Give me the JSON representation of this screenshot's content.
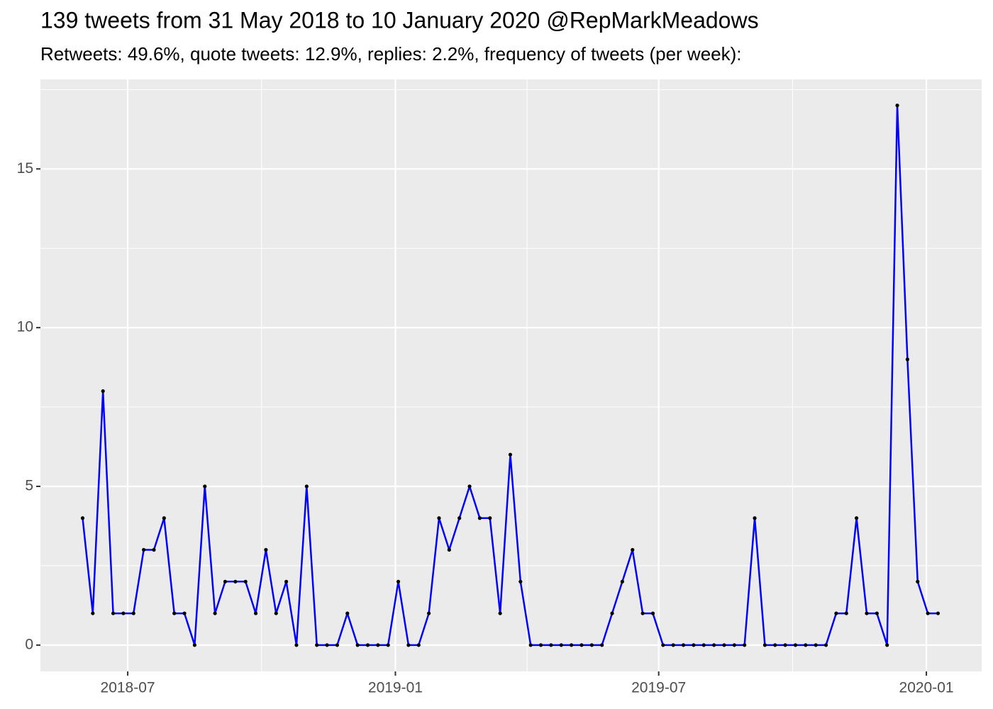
{
  "chart_data": {
    "type": "line",
    "title": "139 tweets from 31 May 2018 to 10 January 2020 @RepMarkMeadows",
    "subtitle": "Retweets: 49.6%, quote tweets: 12.9%, replies: 2.2%, frequency of tweets (per week):",
    "x": [
      "2018-05-31",
      "2018-06-07",
      "2018-06-14",
      "2018-06-21",
      "2018-06-28",
      "2018-07-05",
      "2018-07-12",
      "2018-07-19",
      "2018-07-26",
      "2018-08-02",
      "2018-08-09",
      "2018-08-16",
      "2018-08-23",
      "2018-08-30",
      "2018-09-06",
      "2018-09-13",
      "2018-09-20",
      "2018-09-27",
      "2018-10-04",
      "2018-10-11",
      "2018-10-18",
      "2018-10-25",
      "2018-11-01",
      "2018-11-08",
      "2018-11-15",
      "2018-11-22",
      "2018-11-29",
      "2018-12-06",
      "2018-12-13",
      "2018-12-20",
      "2018-12-27",
      "2019-01-03",
      "2019-01-10",
      "2019-01-17",
      "2019-01-24",
      "2019-01-31",
      "2019-02-07",
      "2019-02-14",
      "2019-02-21",
      "2019-02-28",
      "2019-03-07",
      "2019-03-14",
      "2019-03-21",
      "2019-03-28",
      "2019-04-04",
      "2019-04-11",
      "2019-04-18",
      "2019-04-25",
      "2019-05-02",
      "2019-05-09",
      "2019-05-16",
      "2019-05-23",
      "2019-05-30",
      "2019-06-06",
      "2019-06-13",
      "2019-06-20",
      "2019-06-27",
      "2019-07-04",
      "2019-07-11",
      "2019-07-18",
      "2019-07-25",
      "2019-08-01",
      "2019-08-08",
      "2019-08-15",
      "2019-08-22",
      "2019-08-29",
      "2019-09-05",
      "2019-09-12",
      "2019-09-19",
      "2019-09-26",
      "2019-10-03",
      "2019-10-10",
      "2019-10-17",
      "2019-10-24",
      "2019-10-31",
      "2019-11-07",
      "2019-11-14",
      "2019-11-21",
      "2019-11-28",
      "2019-12-05",
      "2019-12-12",
      "2019-12-19",
      "2019-12-26",
      "2020-01-02",
      "2020-01-09"
    ],
    "series": [
      {
        "color": "#0000ff",
        "point_color": "#000000",
        "values": [
          4,
          1,
          8,
          1,
          1,
          1,
          3,
          3,
          4,
          1,
          1,
          0,
          5,
          1,
          2,
          2,
          2,
          1,
          3,
          1,
          2,
          0,
          5,
          0,
          0,
          0,
          1,
          0,
          0,
          0,
          0,
          2,
          0,
          0,
          1,
          4,
          3,
          4,
          5,
          4,
          4,
          1,
          6,
          2,
          0,
          0,
          0,
          0,
          0,
          0,
          0,
          0,
          1,
          2,
          3,
          1,
          1,
          0,
          0,
          0,
          0,
          0,
          0,
          0,
          0,
          0,
          4,
          0,
          0,
          0,
          0,
          0,
          0,
          0,
          1,
          1,
          4,
          1,
          1,
          0,
          17,
          9,
          2,
          1,
          1
        ]
      }
    ],
    "xlim": [
      "2018-05-02",
      "2020-02-08"
    ],
    "xticks": [
      {
        "value": "2018-07-01",
        "label": "2018-07"
      },
      {
        "value": "2019-01-01",
        "label": "2019-01"
      },
      {
        "value": "2019-07-01",
        "label": "2019-07"
      },
      {
        "value": "2020-01-01",
        "label": "2020-01"
      }
    ],
    "ylim": [
      -0.83,
      17.82
    ],
    "yticks": [
      0,
      5,
      10,
      15
    ],
    "grid": true
  }
}
